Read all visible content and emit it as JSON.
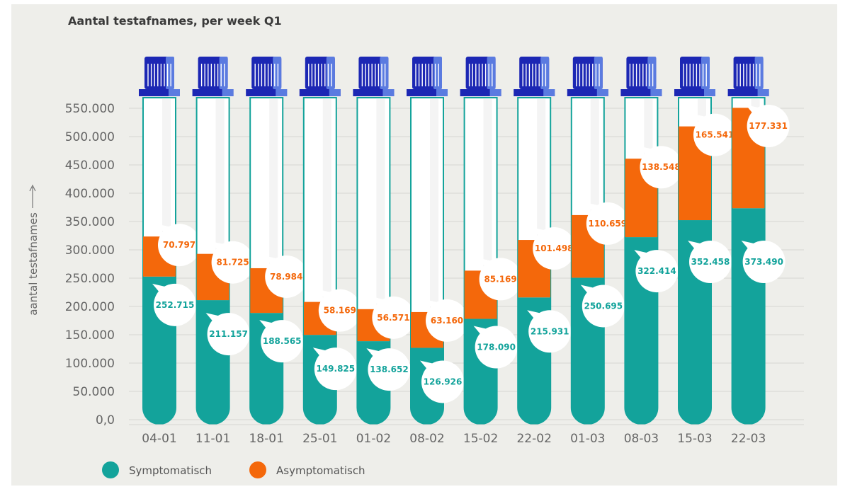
{
  "title_bold": "Aantal testafnames",
  "title_rest": ", per week Q1",
  "colors": {
    "symptomatisch": "#13a39b",
    "asymptomatisch": "#f4680b",
    "cap_dark": "#1c27b4",
    "cap_light": "#5b7be0",
    "tube_outline": "#13a39b",
    "grid": "#d6d6d2"
  },
  "chart_data": {
    "type": "bar",
    "stacked": true,
    "title": "Aantal testafnames, per week Q1",
    "ylabel": "aantal testafnames",
    "xlabel": "",
    "ylim": [
      0,
      550000
    ],
    "yticks": [
      "0,0",
      "50.000",
      "100.000",
      "150.000",
      "200.000",
      "250.000",
      "300.000",
      "350.000",
      "400.000",
      "450.000",
      "500.000",
      "550.000"
    ],
    "categories": [
      "04-01",
      "11-01",
      "18-01",
      "25-01",
      "01-02",
      "08-02",
      "15-02",
      "22-02",
      "01-03",
      "08-03",
      "15-03",
      "22-03"
    ],
    "series": [
      {
        "name": "Symptomatisch",
        "values": [
          252715,
          211157,
          188565,
          149825,
          138652,
          126926,
          178090,
          215931,
          250695,
          322414,
          352458,
          373490
        ],
        "labels": [
          "252.715",
          "211.157",
          "188.565",
          "149.825",
          "138.652",
          "126.926",
          "178.090",
          "215.931",
          "250.695",
          "322.414",
          "352.458",
          "373.490"
        ]
      },
      {
        "name": "Asymptomatisch",
        "values": [
          70797,
          81725,
          78984,
          58169,
          56571,
          63160,
          85169,
          101498,
          110659,
          138548,
          165541,
          177331
        ],
        "labels": [
          "70.797",
          "81.725",
          "78.984",
          "58.169",
          "56.571",
          "63.160",
          "85.169",
          "101.498",
          "110.659",
          "138.548",
          "165.541",
          "177.331"
        ]
      }
    ],
    "grid": true,
    "legend_position": "bottom-left"
  }
}
